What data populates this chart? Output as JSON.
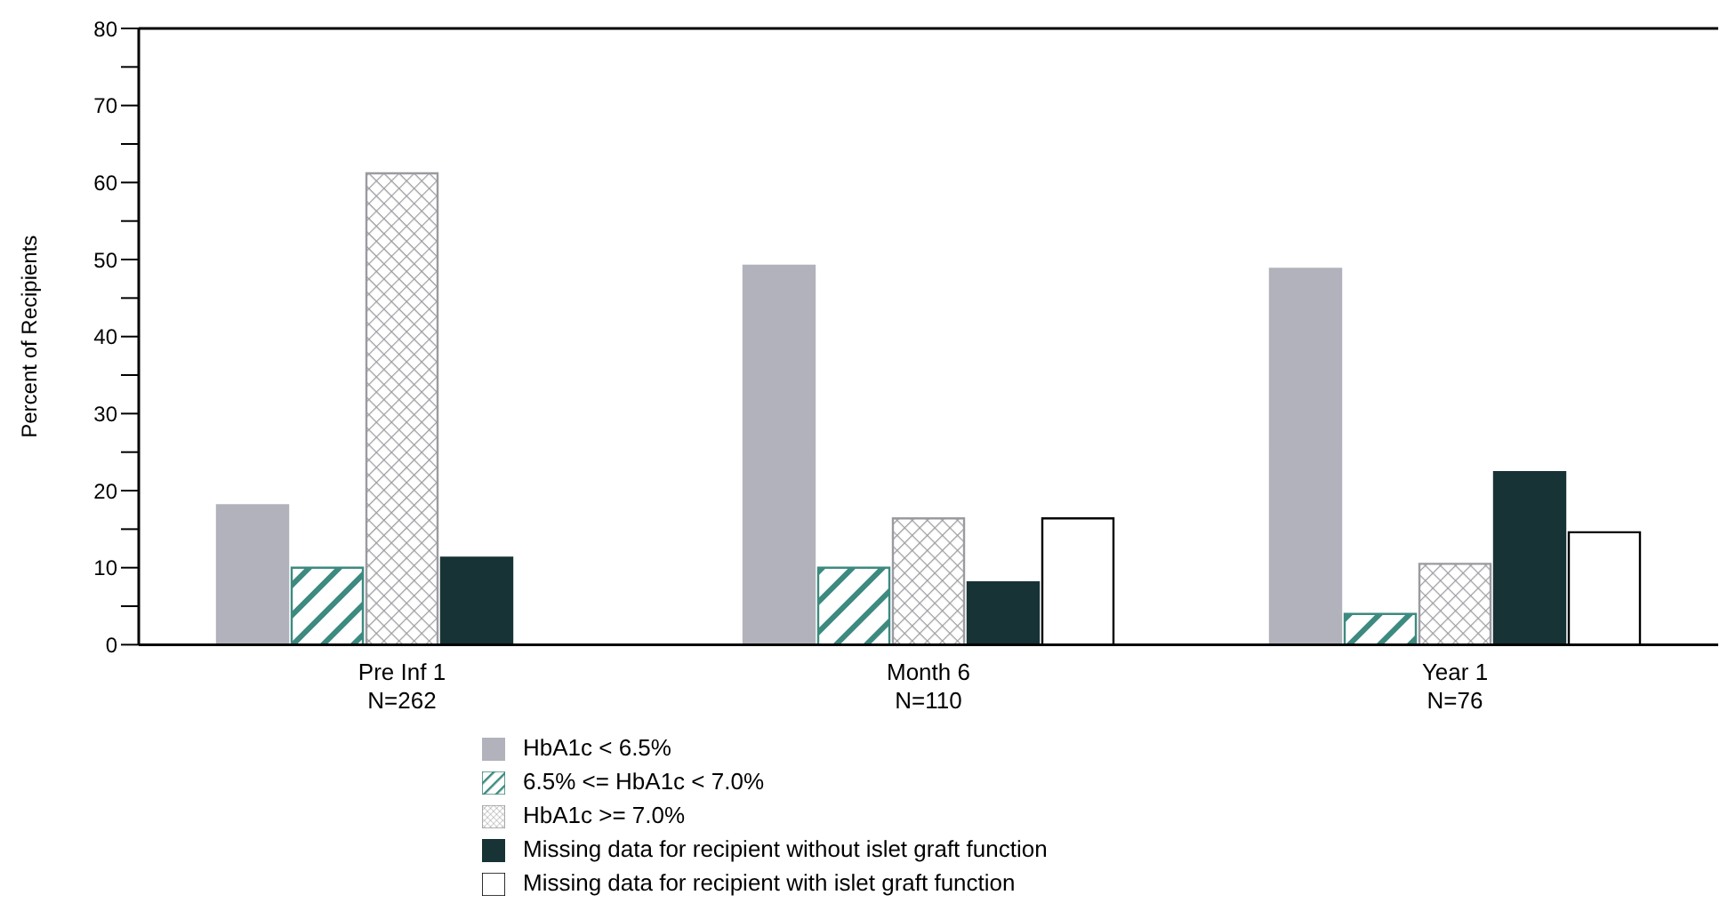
{
  "chart_data": {
    "type": "bar",
    "ylabel": "Percent of Recipients",
    "categories": [
      "Pre Inf 1\nN=262",
      "Month 6\nN=110",
      "Year 1\nN=76"
    ],
    "series": [
      {
        "name": "HbA1c < 6.5%",
        "color": "#b2b2bc",
        "values": [
          18.1,
          49.2,
          48.8
        ]
      },
      {
        "name": "6.5% <= HbA1c < 7.0%",
        "color": "#3d8a80",
        "values": [
          10.0,
          10.0,
          4.0
        ]
      },
      {
        "name": "HbA1c >= 7.0%",
        "color": "#9a9aa0",
        "values": [
          61.2,
          16.4,
          10.5
        ]
      },
      {
        "name": "Missing data for recipient without islet graft function",
        "color": "#173335",
        "values": [
          11.3,
          8.1,
          22.4
        ]
      },
      {
        "name": "Missing data for recipient with islet graft function",
        "color": "#ffffff",
        "values": [
          null,
          16.4,
          14.6
        ]
      }
    ],
    "ylim": [
      0,
      80
    ],
    "yticks": [
      0,
      {
        "value": 5,
        "label": null
      },
      10,
      {
        "value": 15,
        "label": null
      },
      20,
      {
        "value": 25,
        "label": null
      },
      30,
      {
        "value": 35,
        "label": null
      },
      40,
      {
        "value": 45,
        "label": null
      },
      50,
      {
        "value": 55,
        "label": null
      },
      60,
      {
        "value": 65,
        "label": null
      },
      70,
      {
        "value": 75,
        "label": null
      },
      80
    ],
    "grid": false,
    "legend": "bottom"
  }
}
